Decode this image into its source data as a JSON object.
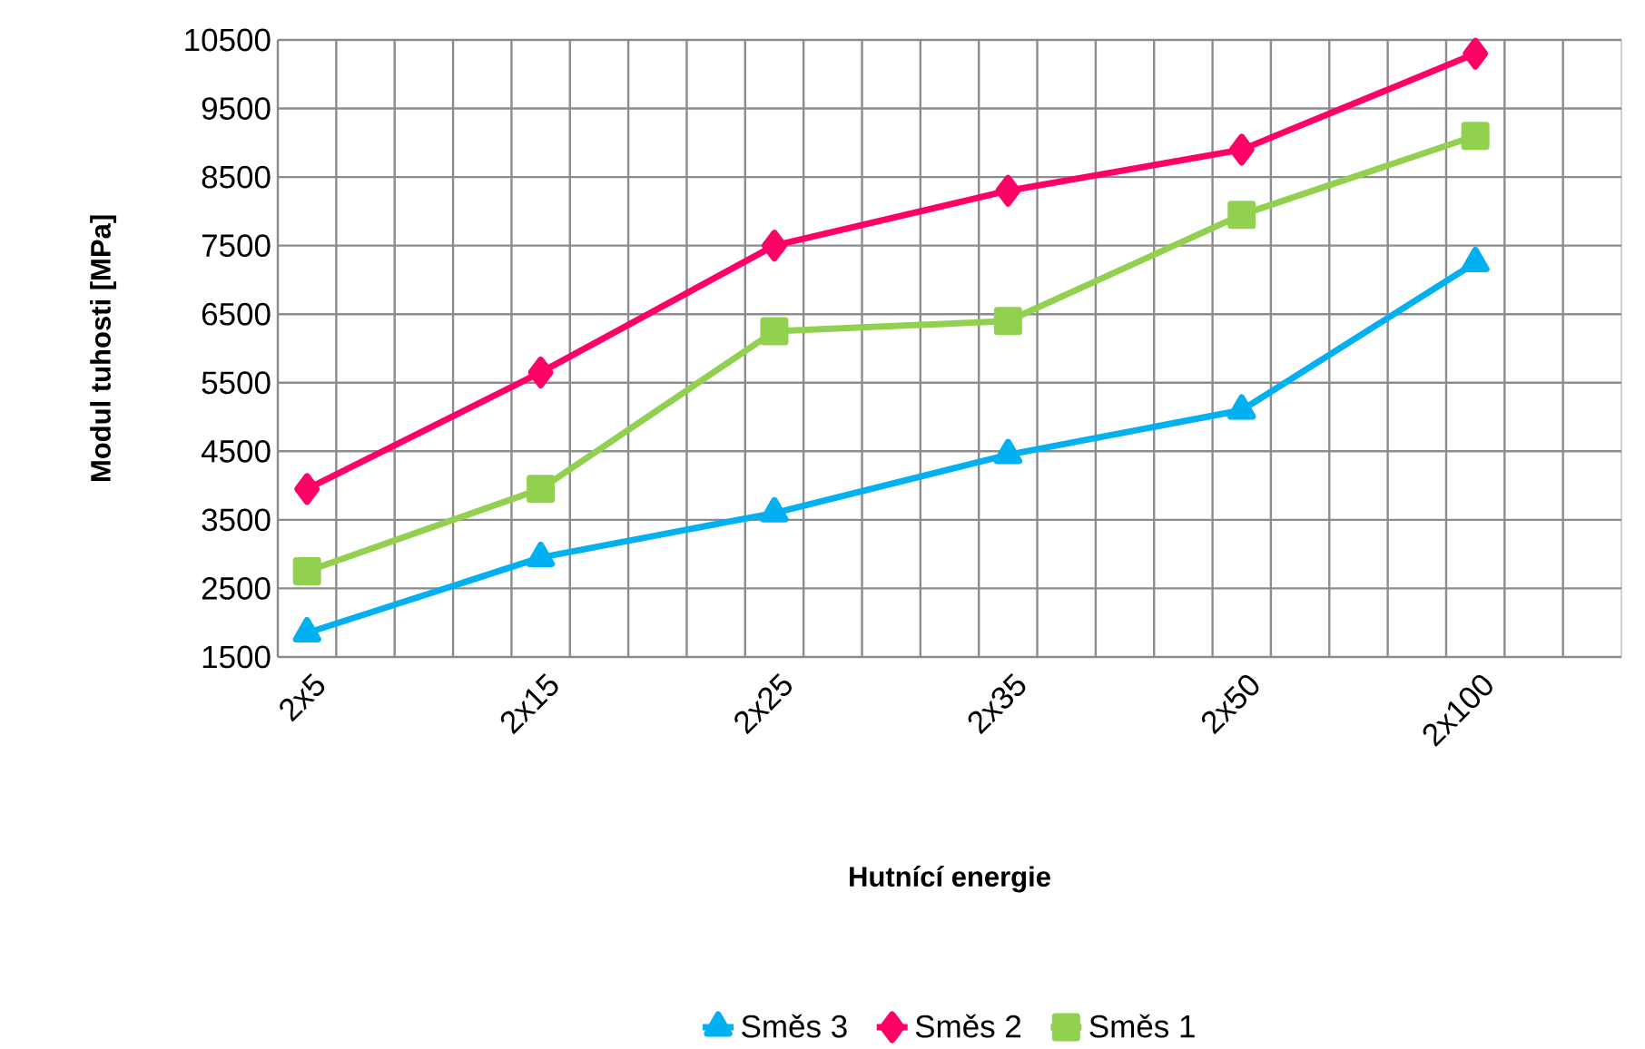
{
  "chart_data": {
    "type": "line",
    "xlabel": "Hutnící energie",
    "ylabel": "Modul tuhosti [MPa]",
    "categories": [
      "2x5",
      "2x15",
      "2x25",
      "2x35",
      "2x50",
      "2x100"
    ],
    "series": [
      {
        "name": "Směs 3",
        "color": "#00b0f0",
        "marker": "triangle",
        "values": [
          1850,
          2950,
          3600,
          4450,
          5100,
          7250
        ]
      },
      {
        "name": "Směs 2",
        "color": "#ff0066",
        "marker": "diamond",
        "values": [
          3950,
          5650,
          7500,
          8300,
          8900,
          10300
        ]
      },
      {
        "name": "Směs 1",
        "color": "#92d050",
        "marker": "square",
        "values": [
          2750,
          3950,
          6250,
          6400,
          7950,
          9100
        ]
      }
    ],
    "ylim": [
      1500,
      10500
    ],
    "yticks": [
      1500,
      2500,
      3500,
      4500,
      5500,
      6500,
      7500,
      8500,
      9500,
      10500
    ],
    "grid": true,
    "legend": "bottom",
    "line_style": "solid"
  }
}
